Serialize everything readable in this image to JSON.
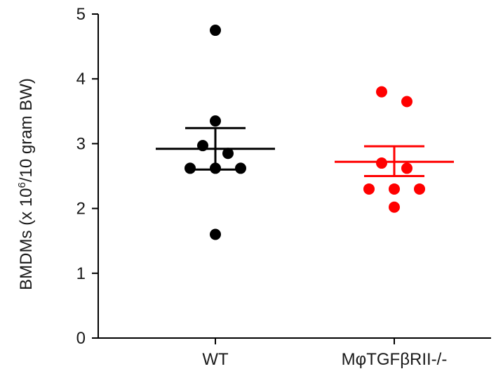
{
  "chart_data": {
    "type": "scatter",
    "subtype": "dot-plot-with-mean-sem",
    "title": "",
    "ylabel": {
      "prefix": "BMDMs (x 10",
      "superscript": "6",
      "suffix": "/10 gram BW)"
    },
    "xlabel": "",
    "ylim": [
      0,
      5
    ],
    "yticks": [
      0,
      1,
      2,
      3,
      4,
      5
    ],
    "categories": [
      "WT",
      "MφTGFβRII-/-"
    ],
    "grid": false,
    "legend": "none",
    "series": [
      {
        "category": "WT",
        "color": "#000000",
        "values": [
          4.75,
          3.35,
          2.97,
          2.85,
          2.62,
          2.62,
          2.62,
          1.6
        ],
        "mean": 2.92,
        "sem_low": 2.6,
        "sem_high": 3.24
      },
      {
        "category": "MφTGFβRII-/-",
        "color": "#ff0000",
        "values": [
          3.8,
          3.65,
          2.7,
          2.62,
          2.3,
          2.3,
          2.3,
          2.02
        ],
        "mean": 2.72,
        "sem_low": 2.5,
        "sem_high": 2.96
      }
    ]
  }
}
